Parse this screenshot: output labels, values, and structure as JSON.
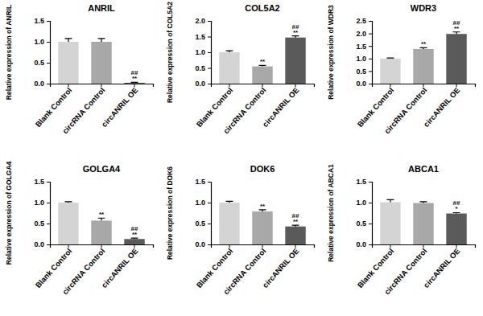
{
  "chart_data": [
    {
      "type": "bar",
      "title": "ANRIL",
      "ylabel": "Relative expression of ANRIL",
      "categories": [
        "Blank Control",
        "circRNA Control",
        "circANRIL OE"
      ],
      "values": [
        1.0,
        1.0,
        0.02
      ],
      "errors": [
        0.08,
        0.08,
        0.01
      ],
      "annotations": [
        null,
        null,
        [
          "##",
          "**"
        ]
      ],
      "colors": [
        "#d4d4d4",
        "#a8a8a8",
        "#5a5a5a"
      ],
      "ylim": [
        0,
        1.5
      ],
      "yticks": [
        {
          "value": 0,
          "label": "0.0"
        },
        0.5,
        {
          "value": 1,
          "label": "1.0"
        },
        1.5
      ]
    },
    {
      "type": "bar",
      "title": "COL5A2",
      "ylabel": "Relative expression of COL5A2",
      "categories": [
        "Blank Control",
        "circRNA Control",
        "circANRIL OE"
      ],
      "values": [
        1.0,
        0.55,
        1.47
      ],
      "errors": [
        0.05,
        0.03,
        0.05
      ],
      "annotations": [
        null,
        [
          "**"
        ],
        [
          "##",
          "**"
        ]
      ],
      "colors": [
        "#d4d4d4",
        "#a8a8a8",
        "#5a5a5a"
      ],
      "ylim": [
        0,
        2
      ],
      "yticks": [
        {
          "value": 0,
          "label": "0.0"
        },
        0.5,
        {
          "value": 1,
          "label": "1.0"
        },
        1.5,
        {
          "value": 2,
          "label": "2.0"
        }
      ]
    },
    {
      "type": "bar",
      "title": "WDR3",
      "ylabel": "Relative expression of WDR3",
      "categories": [
        "Blank Control",
        "circRNA Control",
        "circANRIL OE"
      ],
      "values": [
        1.0,
        1.38,
        1.98
      ],
      "errors": [
        0.02,
        0.05,
        0.08
      ],
      "annotations": [
        null,
        [
          "**"
        ],
        [
          "##",
          "**"
        ]
      ],
      "colors": [
        "#d4d4d4",
        "#a8a8a8",
        "#5a5a5a"
      ],
      "ylim": [
        0,
        2.5
      ],
      "yticks": [
        {
          "value": 0,
          "label": "0.0"
        },
        0.5,
        {
          "value": 1,
          "label": "1.0"
        },
        1.5,
        {
          "value": 2,
          "label": "2.0"
        },
        2.5
      ]
    },
    {
      "type": "bar",
      "title": "GOLGA4",
      "ylabel": "Relative expression of GOLGA4",
      "categories": [
        "Blank Control",
        "circRNA Control",
        "circANRIL OE"
      ],
      "values": [
        1.0,
        0.57,
        0.13
      ],
      "errors": [
        0.02,
        0.06,
        0.02
      ],
      "annotations": [
        null,
        [
          "**"
        ],
        [
          "##",
          "**"
        ]
      ],
      "colors": [
        "#d4d4d4",
        "#a8a8a8",
        "#5a5a5a"
      ],
      "ylim": [
        0,
        1.5
      ],
      "yticks": [
        {
          "value": 0,
          "label": "0.0"
        },
        0.5,
        {
          "value": 1,
          "label": "1.0"
        },
        1.5
      ]
    },
    {
      "type": "bar",
      "title": "DOK6",
      "ylabel": "Relative expression of DOK6",
      "categories": [
        "Blank Control",
        "circRNA Control",
        "circANRIL OE"
      ],
      "values": [
        1.0,
        0.79,
        0.43
      ],
      "errors": [
        0.03,
        0.04,
        0.03
      ],
      "annotations": [
        null,
        [
          "**"
        ],
        [
          "##",
          "**"
        ]
      ],
      "colors": [
        "#d4d4d4",
        "#a8a8a8",
        "#5a5a5a"
      ],
      "ylim": [
        0,
        1.5
      ],
      "yticks": [
        {
          "value": 0,
          "label": "0.0"
        },
        0.5,
        {
          "value": 1,
          "label": "1.0"
        },
        1.5
      ]
    },
    {
      "type": "bar",
      "title": "ABCA1",
      "ylabel": "Relative expression of ABCA1",
      "categories": [
        "Blank Control",
        "circRNA Control",
        "circANRIL OE"
      ],
      "values": [
        1.01,
        0.99,
        0.74
      ],
      "errors": [
        0.06,
        0.03,
        0.02
      ],
      "annotations": [
        null,
        null,
        [
          "##",
          "*"
        ]
      ],
      "colors": [
        "#d4d4d4",
        "#a8a8a8",
        "#5a5a5a"
      ],
      "ylim": [
        0,
        1.5
      ],
      "yticks": [
        {
          "value": 0,
          "label": "0.0"
        },
        0.5,
        {
          "value": 1,
          "label": "1.0"
        },
        1.5
      ]
    }
  ]
}
